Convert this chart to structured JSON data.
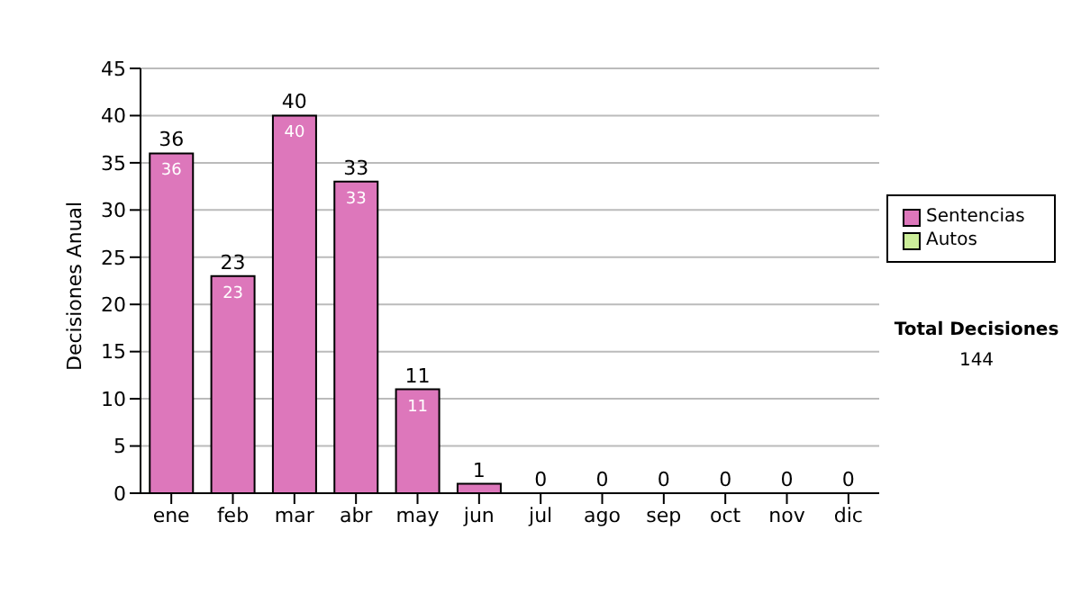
{
  "chart_data": {
    "type": "bar",
    "ylabel": "Decisiones Anual",
    "categories": [
      "ene",
      "feb",
      "mar",
      "abr",
      "may",
      "jun",
      "jul",
      "ago",
      "sep",
      "oct",
      "nov",
      "dic"
    ],
    "series": [
      {
        "name": "Sentencias",
        "color": "#dd77bb",
        "values": [
          36,
          23,
          40,
          33,
          11,
          1,
          0,
          0,
          0,
          0,
          0,
          0
        ],
        "value_labels": [
          "36",
          "23",
          "40",
          "33",
          "11",
          null,
          null,
          null,
          null,
          null,
          null,
          null
        ]
      },
      {
        "name": "Autos",
        "color": "#ccee99",
        "values": [
          0,
          0,
          0,
          0,
          0,
          0,
          0,
          0,
          0,
          0,
          0,
          0
        ]
      }
    ],
    "stacked": true,
    "totals": [
      "36",
      "23",
      "40",
      "33",
      "11",
      "1",
      "0",
      "0",
      "0",
      "0",
      "0",
      "0"
    ],
    "ylim": [
      0,
      45
    ],
    "yticks": [
      0,
      5,
      10,
      15,
      20,
      25,
      30,
      35,
      40,
      45
    ],
    "grid": "y",
    "legend": "right",
    "annotations": [
      "Total Decisiones",
      "144"
    ]
  }
}
